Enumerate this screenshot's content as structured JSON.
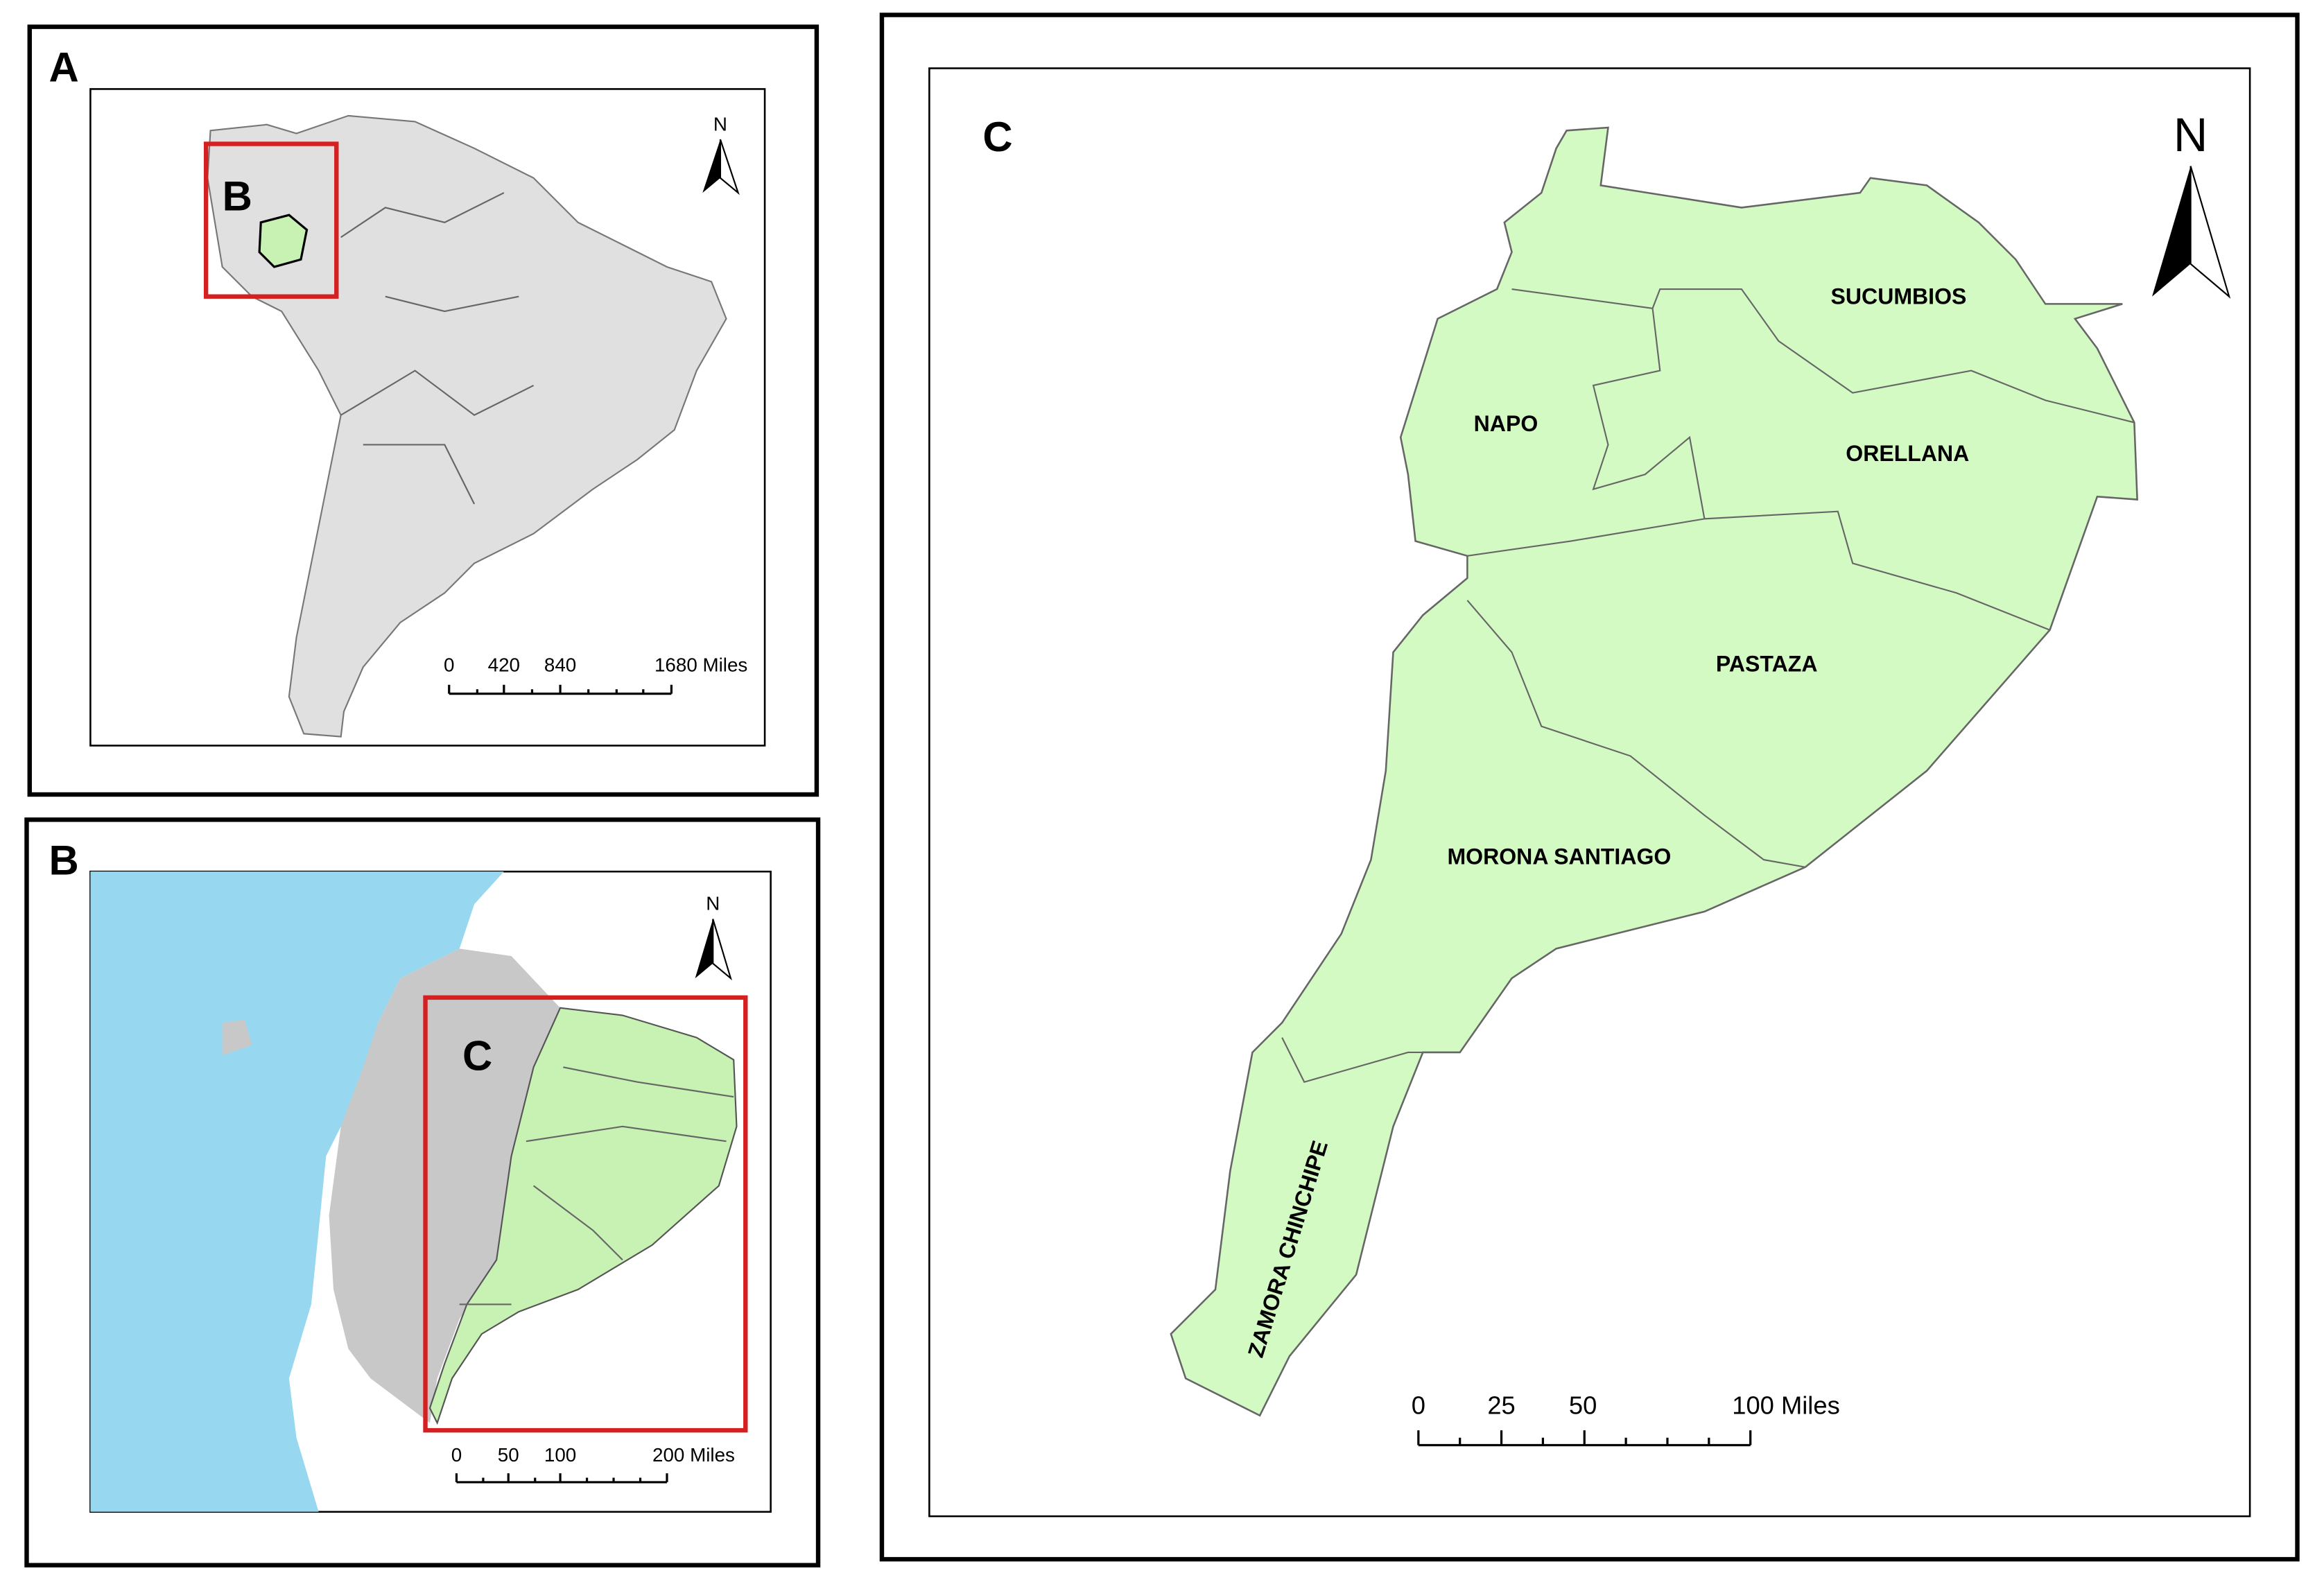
{
  "panels": [
    {
      "label": "A",
      "inset_label": "B",
      "north": "N",
      "scale": [
        "0",
        "420",
        "840",
        "1680 Miles"
      ]
    },
    {
      "label": "B",
      "inset_label": "C",
      "north": "N",
      "scale": [
        "0",
        "50",
        "100",
        "200 Miles"
      ]
    },
    {
      "label": "C",
      "north": "N",
      "scale": [
        "0",
        "25",
        "50",
        "100 Miles"
      ],
      "provinces": [
        "SUCUMBIOS",
        "NAPO",
        "ORELLANA",
        "PASTAZA",
        "MORONA SANTIAGO",
        "ZAMORA CHINCHIPE"
      ]
    }
  ]
}
